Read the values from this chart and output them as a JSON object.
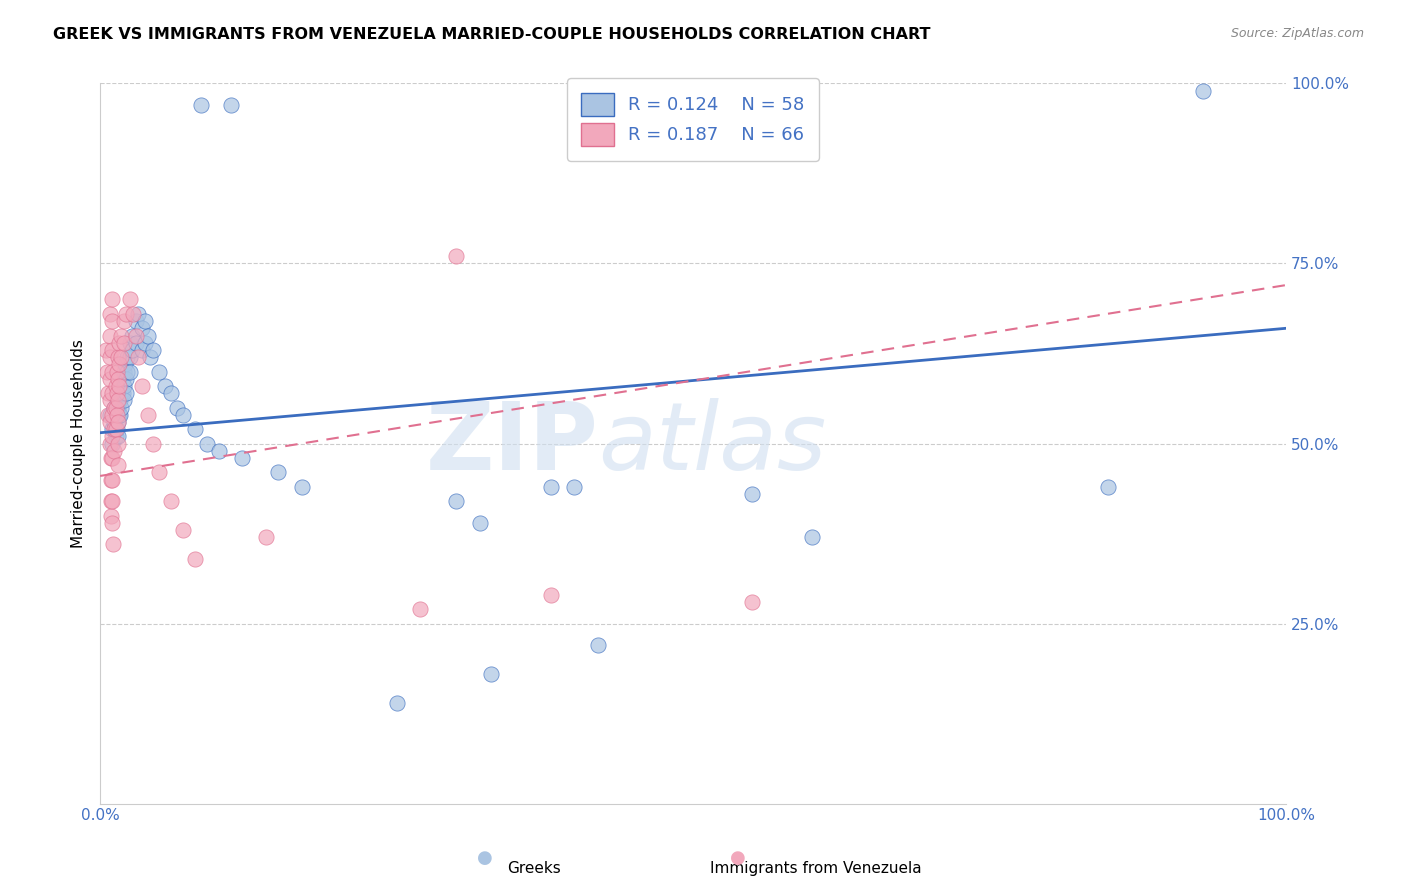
{
  "title": "GREEK VS IMMIGRANTS FROM VENEZUELA MARRIED-COUPLE HOUSEHOLDS CORRELATION CHART",
  "source": "Source: ZipAtlas.com",
  "ylabel": "Married-couple Households",
  "xlim": [
    0,
    1
  ],
  "ylim": [
    0,
    1
  ],
  "xticks": [
    0,
    0.25,
    0.5,
    0.75,
    1.0
  ],
  "xticklabels": [
    "0.0%",
    "",
    "",
    "",
    "100.0%"
  ],
  "ytick_labels_right": [
    "100.0%",
    "75.0%",
    "50.0%",
    "25.0%",
    ""
  ],
  "ytick_values_right": [
    1.0,
    0.75,
    0.5,
    0.25,
    0.0
  ],
  "greek_color": "#aac4e2",
  "venezuela_color": "#f2a8bc",
  "greek_line_color": "#3a6cbf",
  "venezuela_line_color": "#e07090",
  "watermark": "ZIPatlas",
  "background_color": "#ffffff",
  "greek_trend_intercept": 0.515,
  "greek_trend_slope": 0.145,
  "venezuela_trend_intercept": 0.455,
  "venezuela_trend_slope": 0.265,
  "scatter_greek": [
    [
      0.008,
      0.54
    ],
    [
      0.01,
      0.52
    ],
    [
      0.01,
      0.5
    ],
    [
      0.012,
      0.55
    ],
    [
      0.012,
      0.53
    ],
    [
      0.013,
      0.51
    ],
    [
      0.014,
      0.56
    ],
    [
      0.014,
      0.54
    ],
    [
      0.014,
      0.52
    ],
    [
      0.015,
      0.57
    ],
    [
      0.015,
      0.55
    ],
    [
      0.015,
      0.53
    ],
    [
      0.015,
      0.51
    ],
    [
      0.016,
      0.56
    ],
    [
      0.016,
      0.54
    ],
    [
      0.017,
      0.58
    ],
    [
      0.017,
      0.56
    ],
    [
      0.017,
      0.54
    ],
    [
      0.018,
      0.57
    ],
    [
      0.018,
      0.55
    ],
    [
      0.019,
      0.59
    ],
    [
      0.019,
      0.57
    ],
    [
      0.02,
      0.6
    ],
    [
      0.02,
      0.58
    ],
    [
      0.02,
      0.56
    ],
    [
      0.021,
      0.61
    ],
    [
      0.022,
      0.59
    ],
    [
      0.022,
      0.57
    ],
    [
      0.023,
      0.62
    ],
    [
      0.023,
      0.6
    ],
    [
      0.025,
      0.64
    ],
    [
      0.025,
      0.62
    ],
    [
      0.025,
      0.6
    ],
    [
      0.027,
      0.65
    ],
    [
      0.027,
      0.63
    ],
    [
      0.03,
      0.67
    ],
    [
      0.03,
      0.64
    ],
    [
      0.032,
      0.68
    ],
    [
      0.035,
      0.66
    ],
    [
      0.035,
      0.63
    ],
    [
      0.038,
      0.67
    ],
    [
      0.038,
      0.64
    ],
    [
      0.04,
      0.65
    ],
    [
      0.042,
      0.62
    ],
    [
      0.045,
      0.63
    ],
    [
      0.05,
      0.6
    ],
    [
      0.055,
      0.58
    ],
    [
      0.06,
      0.57
    ],
    [
      0.065,
      0.55
    ],
    [
      0.07,
      0.54
    ],
    [
      0.08,
      0.52
    ],
    [
      0.09,
      0.5
    ],
    [
      0.1,
      0.49
    ],
    [
      0.12,
      0.48
    ],
    [
      0.15,
      0.46
    ],
    [
      0.17,
      0.44
    ],
    [
      0.085,
      0.97
    ],
    [
      0.11,
      0.97
    ],
    [
      0.93,
      0.99
    ],
    [
      0.55,
      0.43
    ],
    [
      0.6,
      0.37
    ],
    [
      0.85,
      0.44
    ],
    [
      0.3,
      0.42
    ],
    [
      0.32,
      0.39
    ],
    [
      0.38,
      0.44
    ],
    [
      0.4,
      0.44
    ],
    [
      0.25,
      0.14
    ],
    [
      0.33,
      0.18
    ],
    [
      0.42,
      0.22
    ]
  ],
  "scatter_venezuela": [
    [
      0.005,
      0.63
    ],
    [
      0.006,
      0.6
    ],
    [
      0.007,
      0.57
    ],
    [
      0.007,
      0.54
    ],
    [
      0.008,
      0.68
    ],
    [
      0.008,
      0.65
    ],
    [
      0.008,
      0.62
    ],
    [
      0.008,
      0.59
    ],
    [
      0.008,
      0.56
    ],
    [
      0.008,
      0.53
    ],
    [
      0.008,
      0.5
    ],
    [
      0.009,
      0.48
    ],
    [
      0.009,
      0.45
    ],
    [
      0.009,
      0.42
    ],
    [
      0.009,
      0.4
    ],
    [
      0.01,
      0.7
    ],
    [
      0.01,
      0.67
    ],
    [
      0.01,
      0.63
    ],
    [
      0.01,
      0.6
    ],
    [
      0.01,
      0.57
    ],
    [
      0.01,
      0.54
    ],
    [
      0.01,
      0.51
    ],
    [
      0.01,
      0.48
    ],
    [
      0.01,
      0.45
    ],
    [
      0.01,
      0.42
    ],
    [
      0.01,
      0.39
    ],
    [
      0.011,
      0.36
    ],
    [
      0.012,
      0.55
    ],
    [
      0.012,
      0.52
    ],
    [
      0.012,
      0.49
    ],
    [
      0.013,
      0.58
    ],
    [
      0.013,
      0.55
    ],
    [
      0.013,
      0.52
    ],
    [
      0.014,
      0.6
    ],
    [
      0.014,
      0.57
    ],
    [
      0.014,
      0.54
    ],
    [
      0.015,
      0.62
    ],
    [
      0.015,
      0.59
    ],
    [
      0.015,
      0.56
    ],
    [
      0.015,
      0.53
    ],
    [
      0.015,
      0.5
    ],
    [
      0.015,
      0.47
    ],
    [
      0.016,
      0.64
    ],
    [
      0.016,
      0.61
    ],
    [
      0.016,
      0.58
    ],
    [
      0.018,
      0.65
    ],
    [
      0.018,
      0.62
    ],
    [
      0.02,
      0.67
    ],
    [
      0.02,
      0.64
    ],
    [
      0.022,
      0.68
    ],
    [
      0.025,
      0.7
    ],
    [
      0.028,
      0.68
    ],
    [
      0.03,
      0.65
    ],
    [
      0.032,
      0.62
    ],
    [
      0.035,
      0.58
    ],
    [
      0.04,
      0.54
    ],
    [
      0.045,
      0.5
    ],
    [
      0.05,
      0.46
    ],
    [
      0.06,
      0.42
    ],
    [
      0.07,
      0.38
    ],
    [
      0.08,
      0.34
    ],
    [
      0.14,
      0.37
    ],
    [
      0.3,
      0.76
    ],
    [
      0.38,
      0.29
    ],
    [
      0.55,
      0.28
    ],
    [
      0.27,
      0.27
    ]
  ]
}
